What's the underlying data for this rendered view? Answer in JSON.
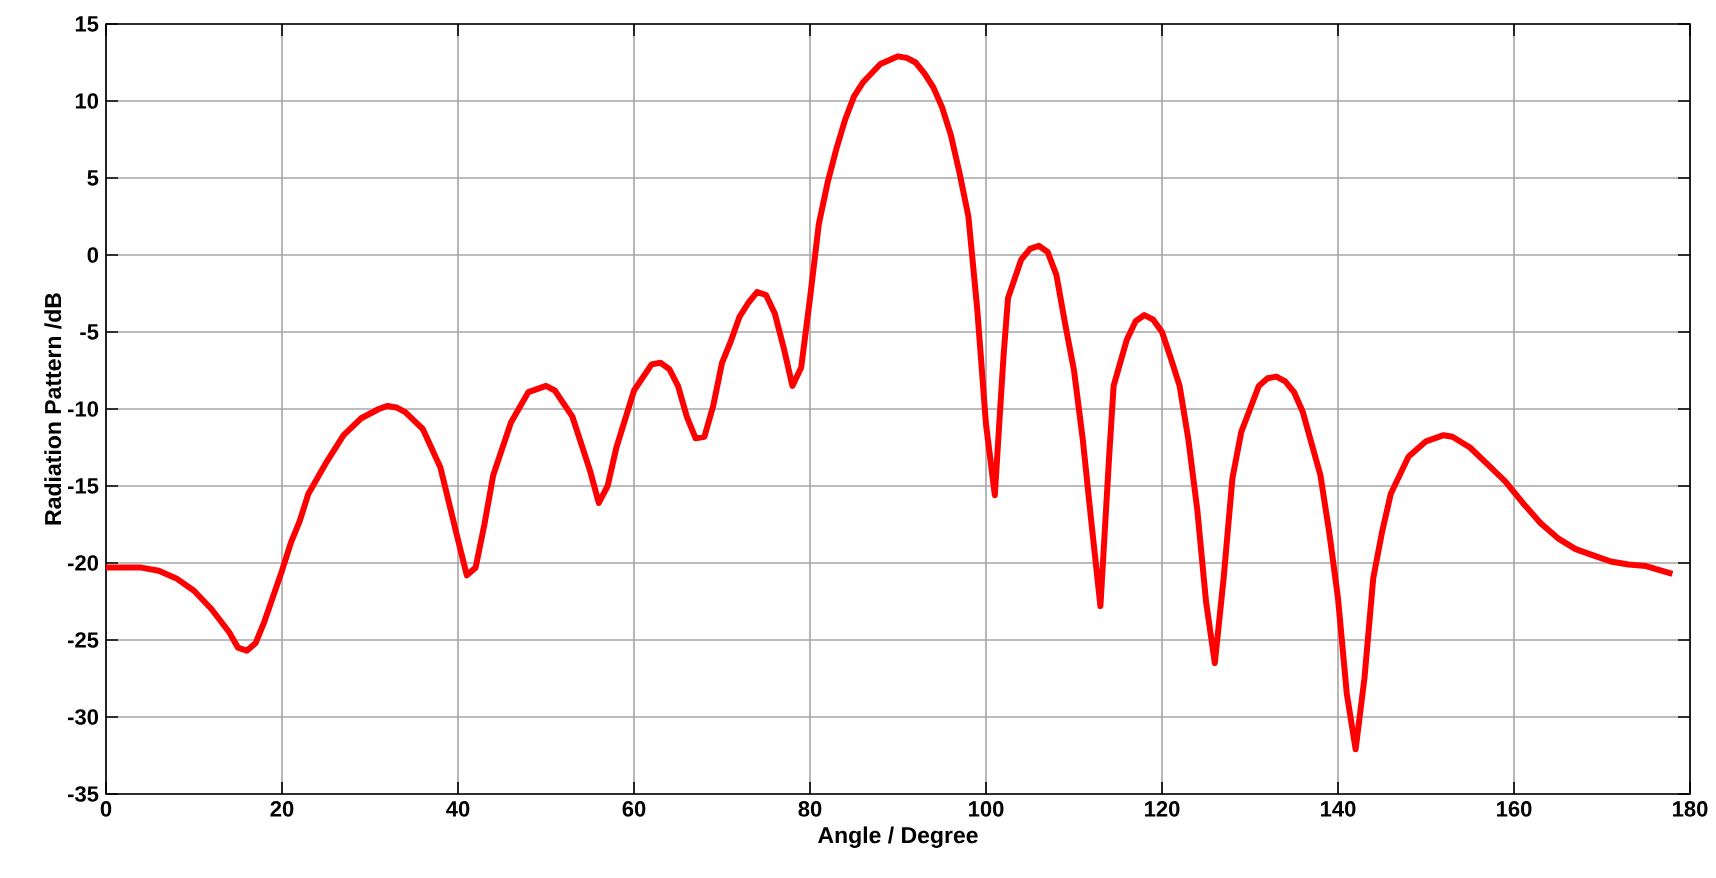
{
  "chart_data": {
    "type": "line",
    "xlabel": "Angle / Degree",
    "ylabel": "Radiation Pattern /dB",
    "xlim": [
      0,
      180
    ],
    "ylim": [
      -35,
      15
    ],
    "xticks": [
      0,
      20,
      40,
      60,
      80,
      100,
      120,
      140,
      160,
      180
    ],
    "yticks": [
      -35,
      -30,
      -25,
      -20,
      -15,
      -10,
      -5,
      0,
      5,
      10,
      15
    ],
    "grid": true,
    "marker": "none",
    "line_style": "solid",
    "series": [
      {
        "color": "#ff0000",
        "x": [
          0,
          4,
          6,
          8,
          10,
          12,
          14,
          15,
          16,
          17,
          18,
          20,
          21,
          22,
          23,
          25,
          27,
          29,
          31,
          32,
          33,
          34,
          36,
          38,
          40,
          41,
          42,
          43,
          44,
          46,
          48,
          50,
          51,
          53,
          55,
          56,
          57,
          58,
          60,
          62,
          63,
          64,
          65,
          66,
          67,
          68,
          69,
          70,
          71,
          72,
          73,
          74,
          75,
          76,
          77,
          78,
          79,
          80,
          81,
          82,
          83,
          84,
          85,
          86,
          88,
          90,
          91,
          92,
          93,
          94,
          95,
          96,
          97,
          98,
          99,
          100,
          101,
          101.5,
          102,
          102.5,
          104,
          105,
          106,
          107,
          108,
          109,
          110,
          111,
          112,
          113,
          114,
          114.5,
          116,
          117,
          118,
          119,
          120,
          121,
          122,
          123,
          124,
          125,
          126,
          127,
          128,
          129,
          130,
          131,
          132,
          133,
          134,
          135,
          136,
          138,
          139,
          140,
          141,
          142,
          143,
          144,
          145,
          146,
          148,
          150,
          152,
          153,
          155,
          157,
          159,
          161,
          163,
          165,
          167,
          169,
          171,
          173,
          175,
          178
        ],
        "values": [
          -20.3,
          -20.3,
          -20.5,
          -21,
          -21.8,
          -23,
          -24.5,
          -25.5,
          -25.7,
          -25.2,
          -23.8,
          -20.5,
          -18.7,
          -17.3,
          -15.5,
          -13.5,
          -11.7,
          -10.6,
          -10,
          -9.8,
          -9.9,
          -10.2,
          -11.3,
          -13.8,
          -18.5,
          -20.8,
          -20.3,
          -17.5,
          -14.3,
          -10.9,
          -8.9,
          -8.5,
          -8.8,
          -10.5,
          -14,
          -16.1,
          -15,
          -12.5,
          -8.8,
          -7.1,
          -7,
          -7.4,
          -8.5,
          -10.5,
          -11.9,
          -11.8,
          -9.8,
          -7,
          -5.6,
          -4,
          -3.1,
          -2.4,
          -2.6,
          -3.8,
          -6,
          -8.5,
          -7.3,
          -2.8,
          2,
          4.7,
          6.9,
          8.8,
          10.3,
          11.2,
          12.4,
          12.9,
          12.8,
          12.5,
          11.8,
          10.9,
          9.6,
          7.8,
          5.3,
          2.5,
          -3.5,
          -11,
          -15.6,
          -11,
          -6.5,
          -2.8,
          -0.3,
          0.4,
          0.6,
          0.2,
          -1.3,
          -4.5,
          -7.5,
          -12,
          -17.5,
          -22.8,
          -13,
          -8.5,
          -5.5,
          -4.3,
          -3.9,
          -4.2,
          -5,
          -6.7,
          -8.5,
          -12,
          -16.5,
          -22.5,
          -26.5,
          -21,
          -14.5,
          -11.5,
          -10,
          -8.5,
          -8,
          -7.9,
          -8.2,
          -8.9,
          -10.2,
          -14.3,
          -18,
          -22.3,
          -28.5,
          -32.1,
          -27.5,
          -21,
          -18,
          -15.5,
          -13.1,
          -12.1,
          -11.7,
          -11.8,
          -12.5,
          -13.6,
          -14.7,
          -16.1,
          -17.4,
          -18.4,
          -19.1,
          -19.5,
          -19.9,
          -20.1,
          -20.2,
          -20.7
        ]
      }
    ]
  }
}
